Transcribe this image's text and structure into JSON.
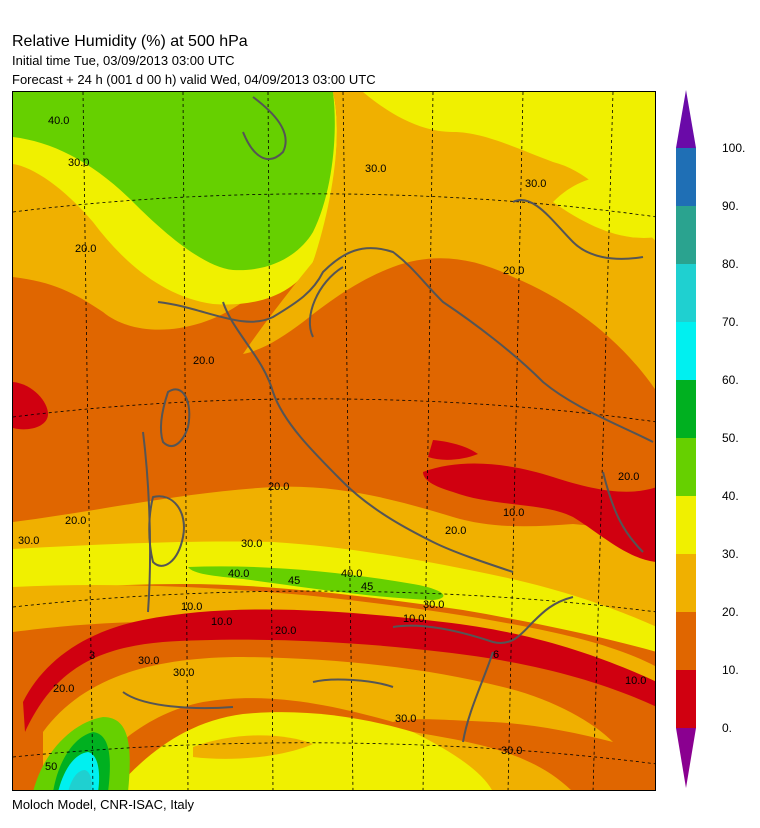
{
  "header": {
    "title": "Relative Humidity (%) at 500 hPa",
    "initial_time": "Initial time  Tue, 03/09/2013  03:00 UTC",
    "forecast": "Forecast  +  24 h  (001 d 00 h)  valid Wed, 04/09/2013 03:00 UTC"
  },
  "footer": "Moloch Model, CNR-ISAC, Italy",
  "colorbar": {
    "labels": [
      "100.",
      "90.",
      "80.",
      "70.",
      "60.",
      "50.",
      "40.",
      "30.",
      "20.",
      "10.",
      "0."
    ],
    "colors": [
      "#6a0aa8",
      "#1f6fb5",
      "#2aa38f",
      "#1fd0d0",
      "#00f0f0",
      "#00b020",
      "#66d000",
      "#f0f000",
      "#f0b000",
      "#e06600",
      "#d00010",
      "#8a0090"
    ]
  },
  "map": {
    "contour_labels": [
      "40.0",
      "30.0",
      "30.0",
      "30.0",
      "20.0",
      "20.0",
      "20.0",
      "20.0",
      "20.0",
      "20.0",
      "20.0",
      "10.0",
      "10.0",
      "10.0",
      "10.0",
      "10.0",
      "30.0",
      "30.0",
      "40.0",
      "40.0",
      "45",
      "45",
      "30.0",
      "20.0",
      "3",
      "6",
      "30.0",
      "20.0",
      "30.0",
      "30.0",
      "30.0",
      "50"
    ]
  }
}
